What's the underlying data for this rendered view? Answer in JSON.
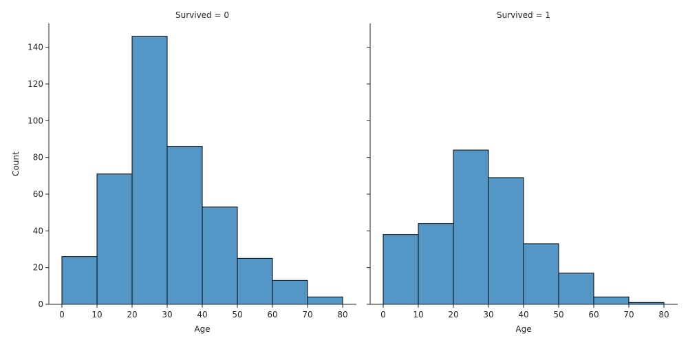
{
  "chart_data": [
    {
      "type": "bar",
      "title": "Survived = 0",
      "xlabel": "Age",
      "ylabel": "Count",
      "bins": [
        [
          0,
          10
        ],
        [
          10,
          20
        ],
        [
          20,
          30
        ],
        [
          30,
          40
        ],
        [
          40,
          50
        ],
        [
          50,
          60
        ],
        [
          60,
          70
        ],
        [
          70,
          80
        ]
      ],
      "values": [
        26,
        71,
        146,
        86,
        53,
        25,
        13,
        4
      ],
      "xlim": [
        0,
        80
      ],
      "ylim": [
        0,
        153
      ],
      "xticks": [
        "0",
        "10",
        "20",
        "30",
        "40",
        "50",
        "60",
        "70",
        "80"
      ],
      "yticks": [
        "0",
        "20",
        "40",
        "60",
        "80",
        "100",
        "120",
        "140"
      ],
      "bar_color": "#5497c7",
      "grid": false
    },
    {
      "type": "bar",
      "title": "Survived = 1",
      "xlabel": "Age",
      "ylabel": "",
      "bins": [
        [
          0,
          10
        ],
        [
          10,
          20
        ],
        [
          20,
          30
        ],
        [
          30,
          40
        ],
        [
          40,
          50
        ],
        [
          50,
          60
        ],
        [
          60,
          70
        ],
        [
          70,
          80
        ]
      ],
      "values": [
        38,
        44,
        84,
        69,
        33,
        17,
        4,
        1
      ],
      "xlim": [
        0,
        80
      ],
      "ylim": [
        0,
        153
      ],
      "xticks": [
        "0",
        "10",
        "20",
        "30",
        "40",
        "50",
        "60",
        "70",
        "80"
      ],
      "yticks": [],
      "bar_color": "#5497c7",
      "grid": false
    }
  ]
}
